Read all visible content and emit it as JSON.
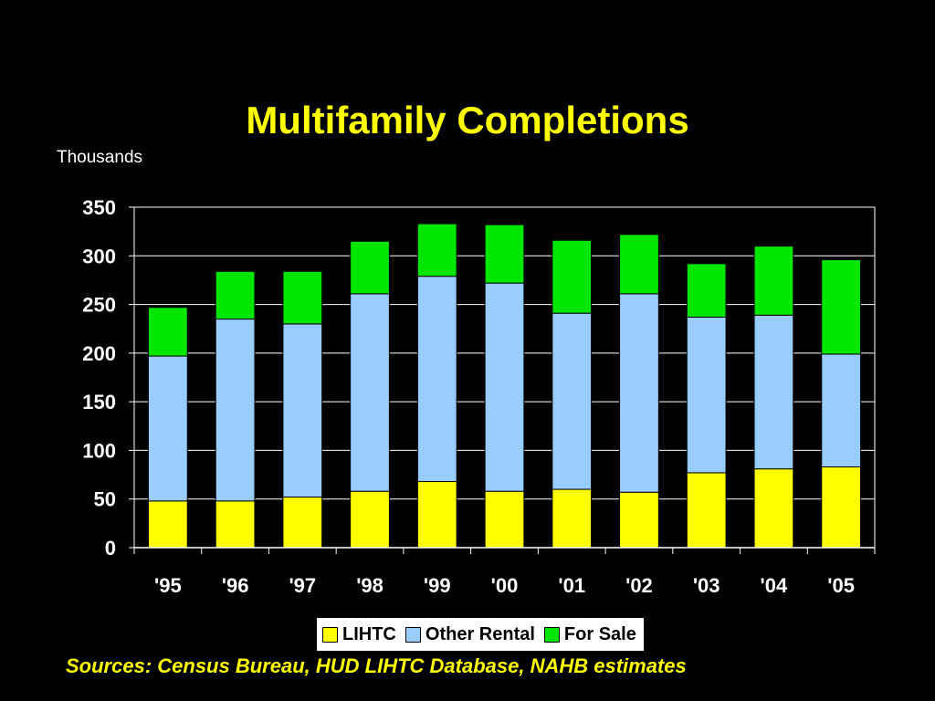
{
  "title": "Multifamily Completions",
  "unit_label": "Thousands",
  "source": "Sources: Census Bureau, HUD LIHTC Database, NAHB estimates",
  "chart_data": {
    "type": "bar",
    "stacked": true,
    "categories": [
      "'95",
      "'96",
      "'97",
      "'98",
      "'99",
      "'00",
      "'01",
      "'02",
      "'03",
      "'04",
      "'05"
    ],
    "series": [
      {
        "name": "LIHTC",
        "color": "#FFFF00",
        "values": [
          48,
          48,
          52,
          58,
          68,
          58,
          60,
          57,
          77,
          81,
          83
        ]
      },
      {
        "name": "Other Rental",
        "color": "#99CCFF",
        "values": [
          149,
          187,
          178,
          203,
          211,
          214,
          181,
          204,
          160,
          158,
          116
        ]
      },
      {
        "name": "For Sale",
        "color": "#00E600",
        "values": [
          50,
          49,
          54,
          54,
          54,
          60,
          75,
          61,
          55,
          71,
          97
        ]
      }
    ],
    "ylim": [
      0,
      350
    ],
    "yticks": [
      0,
      50,
      100,
      150,
      200,
      250,
      300,
      350
    ],
    "grid": true,
    "legend_position": "bottom"
  }
}
